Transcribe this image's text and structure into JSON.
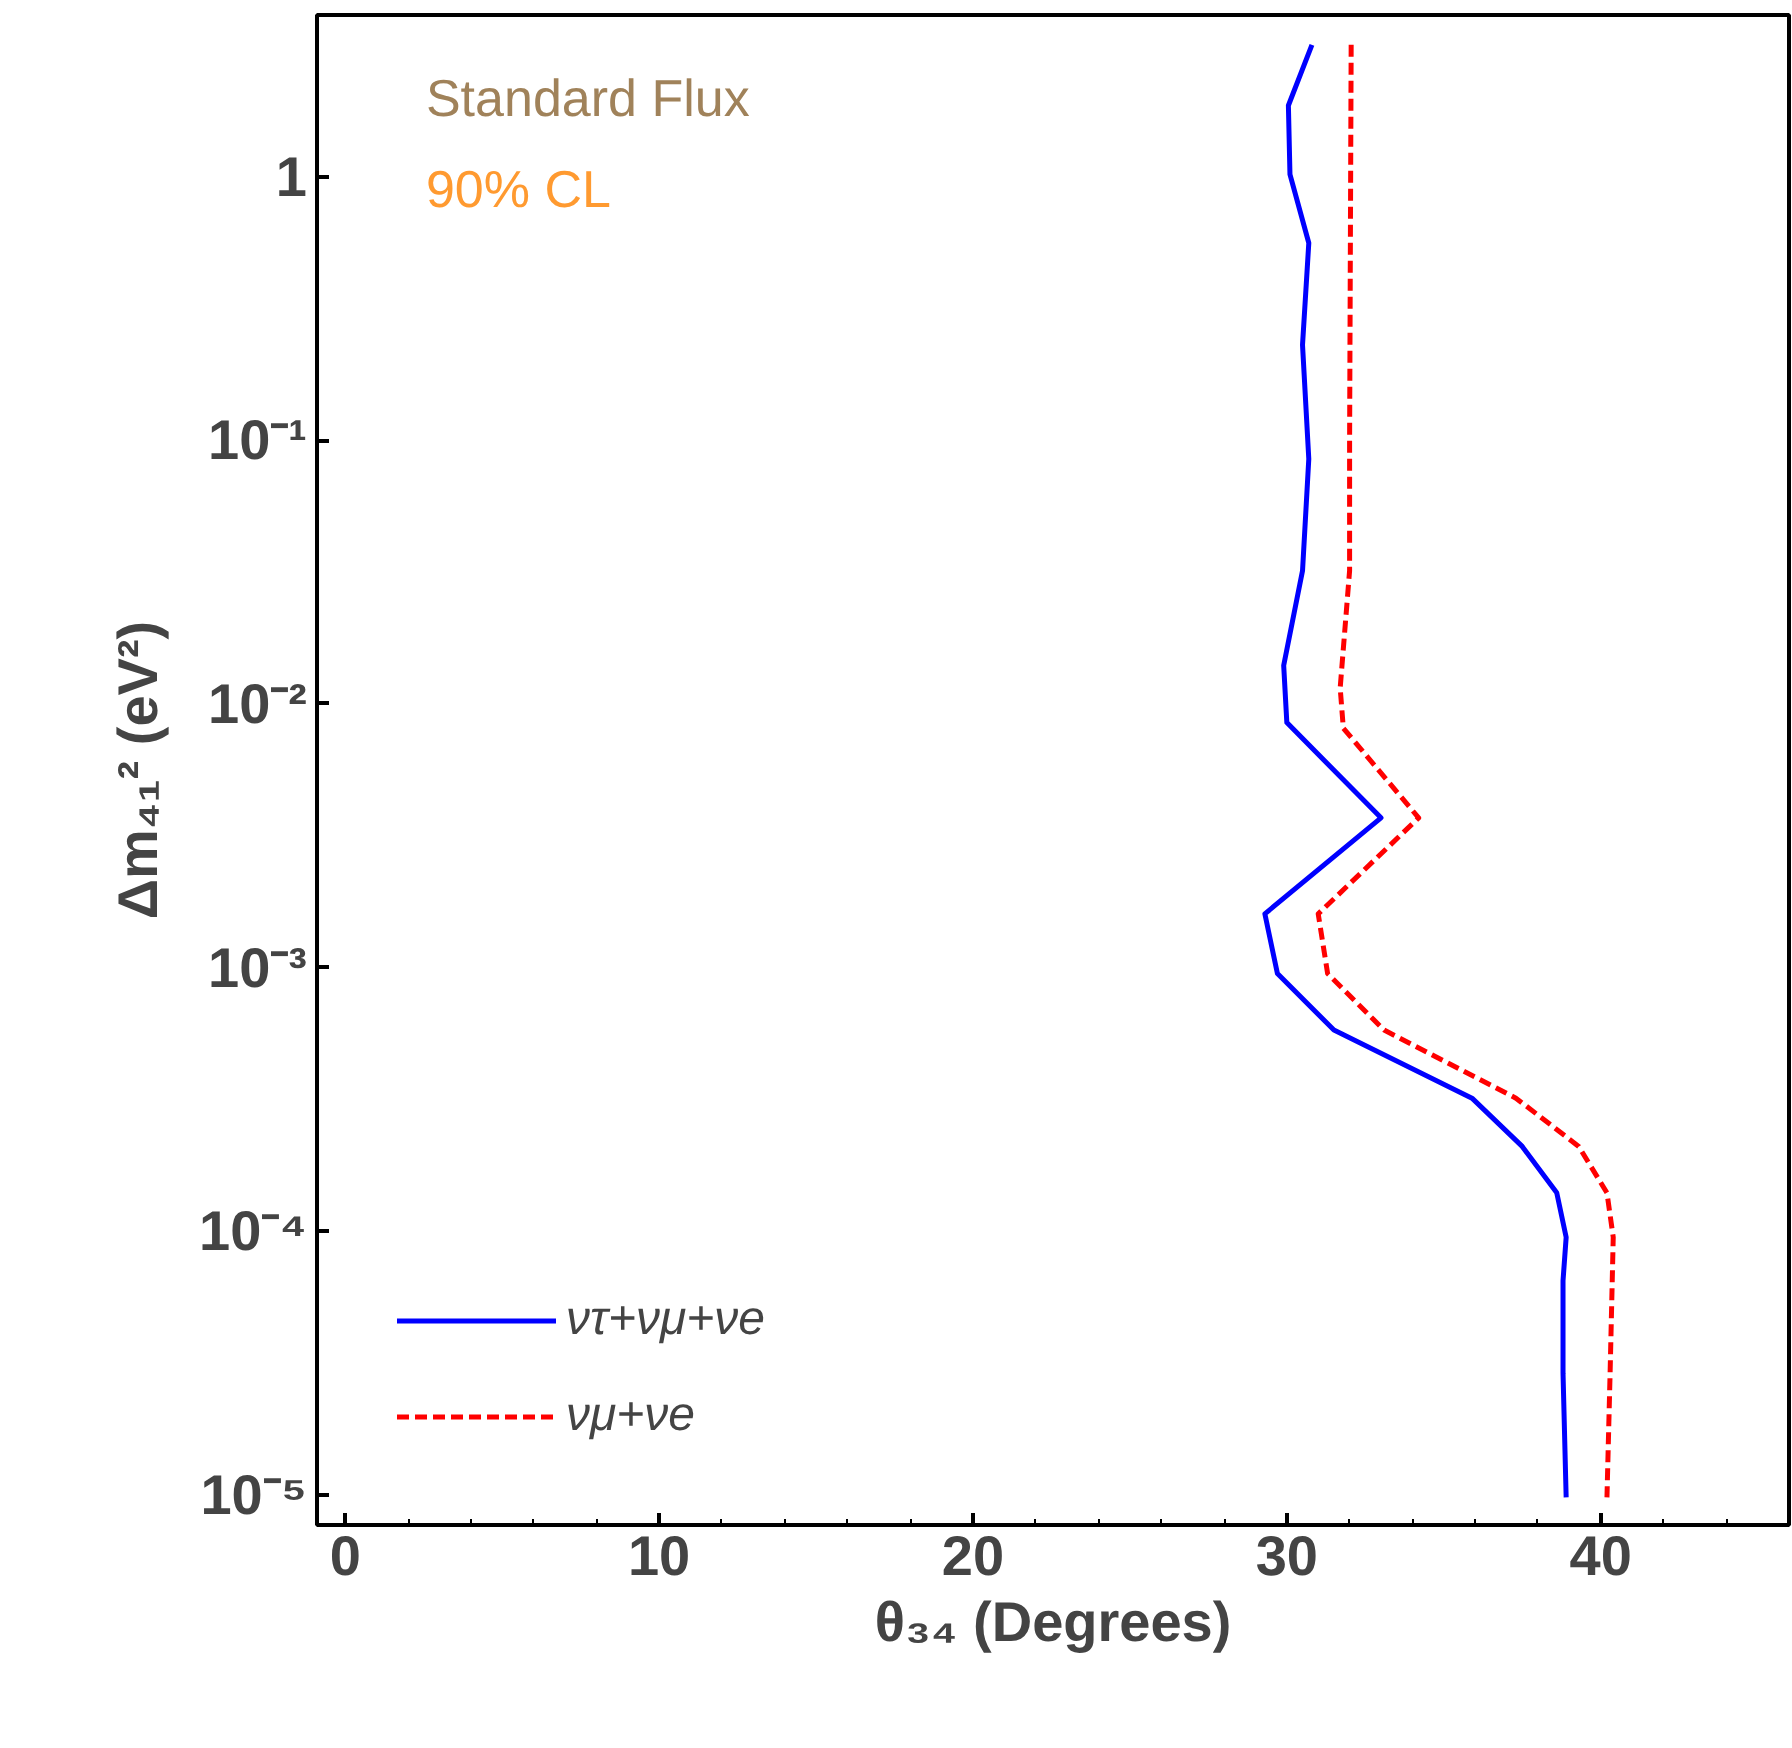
{
  "chart_data": {
    "type": "line",
    "xlabel": "θ₃₄ (Degrees)",
    "ylabel": "Δm₄₁² (eV²)",
    "annotations": [
      "Standard Flux",
      "90% CL"
    ],
    "log": "y",
    "grid": false,
    "legend": "bottom left",
    "xlim": [
      -0.9,
      46
    ],
    "ylim": [
      7.7e-06,
      4.1
    ],
    "xticks": [
      0,
      {
        "value": 2,
        "label": null
      },
      {
        "value": 4,
        "label": null
      },
      {
        "value": 6,
        "label": null
      },
      {
        "value": 8,
        "label": null
      },
      10,
      {
        "value": 12,
        "label": null
      },
      {
        "value": 14,
        "label": null
      },
      {
        "value": 16,
        "label": null
      },
      {
        "value": 18,
        "label": null
      },
      20,
      {
        "value": 22,
        "label": null
      },
      {
        "value": 24,
        "label": null
      },
      {
        "value": 26,
        "label": null
      },
      {
        "value": 28,
        "label": null
      },
      30,
      {
        "value": 32,
        "label": null
      },
      {
        "value": 34,
        "label": null
      },
      {
        "value": 36,
        "label": null
      },
      {
        "value": 38,
        "label": null
      },
      40,
      {
        "value": 42,
        "label": null
      },
      {
        "value": 44,
        "label": null
      }
    ],
    "yticks": [
      {
        "value": 1e-05,
        "label": "10⁻⁵"
      },
      {
        "value": 0.0001,
        "label": "10⁻⁴"
      },
      {
        "value": 0.001,
        "label": "10⁻³"
      },
      {
        "value": 0.01,
        "label": "10⁻²"
      },
      {
        "value": 0.1,
        "label": "10⁻¹"
      },
      1
    ],
    "series": [
      {
        "name": "ντ+νμ+νe",
        "color": "#0000ff",
        "line_style": "solid",
        "x": [
          30.8,
          30.05,
          30.1,
          30.7,
          30.5,
          30.7,
          30.5,
          29.9,
          30.0,
          33.0,
          29.3,
          29.7,
          31.5,
          35.9,
          37.5,
          38.6,
          38.9,
          38.8,
          38.8,
          38.9
        ],
        "values": [
          3.16,
          1.86,
          1.02,
          0.56,
          0.23,
          0.085,
          0.032,
          0.014,
          0.0085,
          0.0037,
          0.0016,
          0.00095,
          0.00058,
          0.00032,
          0.00021,
          0.00014,
          9.5e-05,
          6.5e-05,
          2.9e-05,
          9.8e-06
        ]
      },
      {
        "name": "νμ+νe",
        "color": "#ff0000",
        "line_style": "dashed",
        "x": [
          32.05,
          32.0,
          32.0,
          31.7,
          31.8,
          34.2,
          31.0,
          31.3,
          33.1,
          37.3,
          39.3,
          40.2,
          40.4,
          40.3,
          40.2
        ],
        "values": [
          3.16,
          0.1,
          0.032,
          0.0115,
          0.0081,
          0.0037,
          0.0016,
          0.00095,
          0.00058,
          0.00032,
          0.00021,
          0.00014,
          9.5e-05,
          2.9e-05,
          9.8e-06
        ]
      }
    ]
  }
}
